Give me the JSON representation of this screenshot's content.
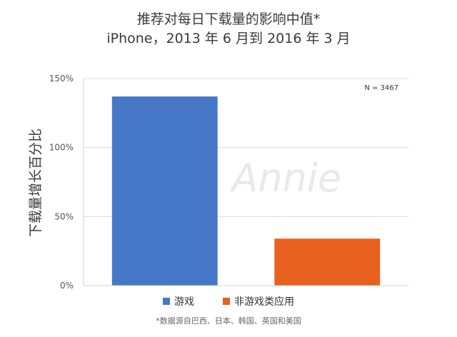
{
  "chart_data": {
    "type": "bar",
    "title": "推荐对每日下载量的影响中值*",
    "subtitle": "iPhone，2013 年 6 月到 2016 年 3 月",
    "ylabel": "下载量增长百分比",
    "xlabel": "",
    "ylim": [
      0,
      150
    ],
    "yticks": [
      0,
      50,
      100,
      150
    ],
    "ytick_labels": [
      "0%",
      "50%",
      "100%",
      "150%"
    ],
    "grid": true,
    "categories": [
      "游戏",
      "非游戏类应用"
    ],
    "values": [
      137,
      34
    ],
    "colors": [
      "#4778c7",
      "#e8601d"
    ],
    "annotation": "N = 3467",
    "watermark": "App Annie",
    "legend": {
      "position": "bottom",
      "entries": [
        "游戏",
        "非游戏类应用"
      ]
    },
    "footnote": "*数据源自巴西、日本、韩国、英国和美国"
  }
}
